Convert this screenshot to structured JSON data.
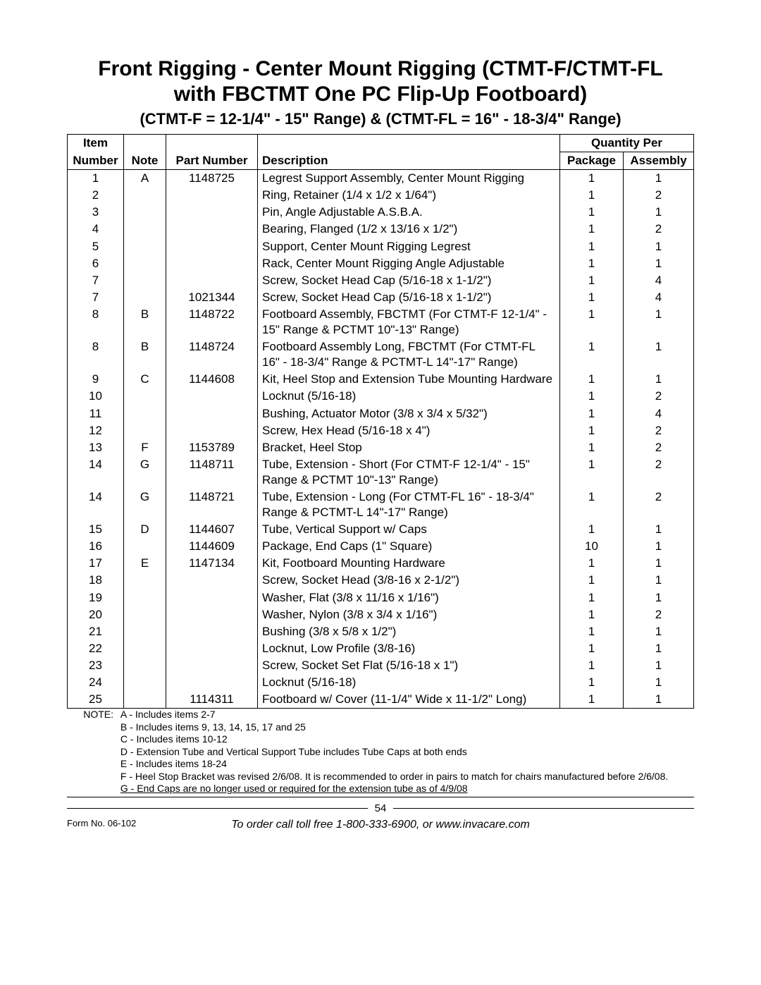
{
  "title": {
    "line1": "Front Rigging - Center Mount Rigging (CTMT-F/CTMT-FL",
    "line2": "with FBCTMT One PC Flip-Up Footboard)",
    "subtitle": "(CTMT-F = 12-1/4\" - 15\" Range) & (CTMT-FL = 16\" - 18-3/4\" Range)"
  },
  "headers": {
    "item": "Item",
    "number": "Number",
    "note": "Note",
    "part_number": "Part Number",
    "description": "Description",
    "quantity_per": "Quantity Per",
    "package": "Package",
    "assembly": "Assembly"
  },
  "rows": [
    {
      "item": "1",
      "note": "A",
      "part": "1148725",
      "desc": "Legrest Support Assembly, Center Mount Rigging",
      "pkg": "1",
      "asm": "1"
    },
    {
      "item": "2",
      "note": "",
      "part": "",
      "desc": "Ring, Retainer (1/4 x 1/2 x 1/64\")",
      "pkg": "1",
      "asm": "2"
    },
    {
      "item": "3",
      "note": "",
      "part": "",
      "desc": "Pin, Angle Adjustable A.S.B.A.",
      "pkg": "1",
      "asm": "1"
    },
    {
      "item": "4",
      "note": "",
      "part": "",
      "desc": "Bearing, Flanged (1/2 x 13/16 x 1/2\")",
      "pkg": "1",
      "asm": "2"
    },
    {
      "item": "5",
      "note": "",
      "part": "",
      "desc": "Support, Center Mount Rigging Legrest",
      "pkg": "1",
      "asm": "1"
    },
    {
      "item": "6",
      "note": "",
      "part": "",
      "desc": "Rack, Center Mount Rigging Angle Adjustable",
      "pkg": "1",
      "asm": "1"
    },
    {
      "item": "7",
      "note": "",
      "part": "",
      "desc": "Screw, Socket Head Cap (5/16-18 x 1-1/2\")",
      "pkg": "1",
      "asm": "4"
    },
    {
      "item": "7",
      "note": "",
      "part": "1021344",
      "desc": "Screw, Socket Head Cap (5/16-18 x 1-1/2\")",
      "pkg": "1",
      "asm": "4"
    },
    {
      "item": "8",
      "note": "B",
      "part": "1148722",
      "desc": "Footboard Assembly, FBCTMT (For CTMT-F 12-1/4\" - 15\" Range & PCTMT 10\"-13\" Range)",
      "pkg": "1",
      "asm": "1"
    },
    {
      "item": "8",
      "note": "B",
      "part": "1148724",
      "desc": "Footboard Assembly Long, FBCTMT (For CTMT-FL 16\" - 18-3/4\" Range & PCTMT-L 14\"-17\" Range)",
      "pkg": "1",
      "asm": "1"
    },
    {
      "item": "9",
      "note": "C",
      "part": "1144608",
      "desc": "Kit, Heel Stop and Extension Tube Mounting Hardware",
      "pkg": "1",
      "asm": "1"
    },
    {
      "item": "10",
      "note": "",
      "part": "",
      "desc": "Locknut (5/16-18)",
      "pkg": "1",
      "asm": "2"
    },
    {
      "item": "11",
      "note": "",
      "part": "",
      "desc": "Bushing, Actuator Motor (3/8 x 3/4 x 5/32\")",
      "pkg": "1",
      "asm": "4"
    },
    {
      "item": "12",
      "note": "",
      "part": "",
      "desc": "Screw, Hex Head (5/16-18 x 4\")",
      "pkg": "1",
      "asm": "2"
    },
    {
      "item": "13",
      "note": "F",
      "part": "1153789",
      "desc": "Bracket, Heel Stop",
      "pkg": "1",
      "asm": "2"
    },
    {
      "item": "14",
      "note": "G",
      "part": "1148711",
      "desc": "Tube, Extension - Short (For CTMT-F 12-1/4\" - 15\" Range & PCTMT 10\"-13\" Range)",
      "pkg": "1",
      "asm": "2"
    },
    {
      "item": "14",
      "note": "G",
      "part": "1148721",
      "desc": "Tube, Extension - Long (For CTMT-FL 16\" - 18-3/4\" Range & PCTMT-L 14\"-17\" Range)",
      "pkg": "1",
      "asm": "2"
    },
    {
      "item": "15",
      "note": "D",
      "part": "1144607",
      "desc": "Tube, Vertical Support w/ Caps",
      "pkg": "1",
      "asm": "1"
    },
    {
      "item": "16",
      "note": "",
      "part": "1144609",
      "desc": "Package, End Caps (1\" Square)",
      "pkg": "10",
      "asm": "1"
    },
    {
      "item": "17",
      "note": "E",
      "part": "1147134",
      "desc": "Kit, Footboard Mounting Hardware",
      "pkg": "1",
      "asm": "1"
    },
    {
      "item": "18",
      "note": "",
      "part": "",
      "desc": "Screw, Socket Head (3/8-16 x 2-1/2\")",
      "pkg": "1",
      "asm": "1"
    },
    {
      "item": "19",
      "note": "",
      "part": "",
      "desc": "Washer, Flat (3/8 x 11/16 x 1/16\")",
      "pkg": "1",
      "asm": "1"
    },
    {
      "item": "20",
      "note": "",
      "part": "",
      "desc": "Washer, Nylon (3/8 x 3/4 x 1/16\")",
      "pkg": "1",
      "asm": "2"
    },
    {
      "item": "21",
      "note": "",
      "part": "",
      "desc": "Bushing (3/8 x 5/8 x 1/2\")",
      "pkg": "1",
      "asm": "1"
    },
    {
      "item": "22",
      "note": "",
      "part": "",
      "desc": "Locknut, Low Profile (3/8-16)",
      "pkg": "1",
      "asm": "1"
    },
    {
      "item": "23",
      "note": "",
      "part": "",
      "desc": "Screw, Socket Set Flat (5/16-18 x 1\")",
      "pkg": "1",
      "asm": "1"
    },
    {
      "item": "24",
      "note": "",
      "part": "",
      "desc": "Locknut (5/16-18)",
      "pkg": "1",
      "asm": "1"
    },
    {
      "item": "25",
      "note": "",
      "part": "1114311",
      "desc": "Footboard w/ Cover (11-1/4\" Wide x 11-1/2\" Long)",
      "pkg": "1",
      "asm": "1"
    }
  ],
  "notes": {
    "label": "NOTE:",
    "lines": [
      "A - Includes items 2-7",
      "B - Includes items 9, 13, 14, 15, 17 and 25",
      "C - Includes items 10-12",
      "D - Extension Tube and Vertical Support Tube includes Tube Caps at both ends",
      "E - Includes items 18-24",
      "F - Heel Stop Bracket was revised 2/6/08. It is recommended to order in pairs to match for chairs manufactured before 2/6/08."
    ],
    "last_line_underlined": "G - End Caps are no longer used or required for the extension tube as of 4/9/08"
  },
  "footer": {
    "page_number": "54",
    "form_no": "Form No. 06-102",
    "order_line": "To order call toll free 1-800-333-6900, or www.invacare.com"
  }
}
